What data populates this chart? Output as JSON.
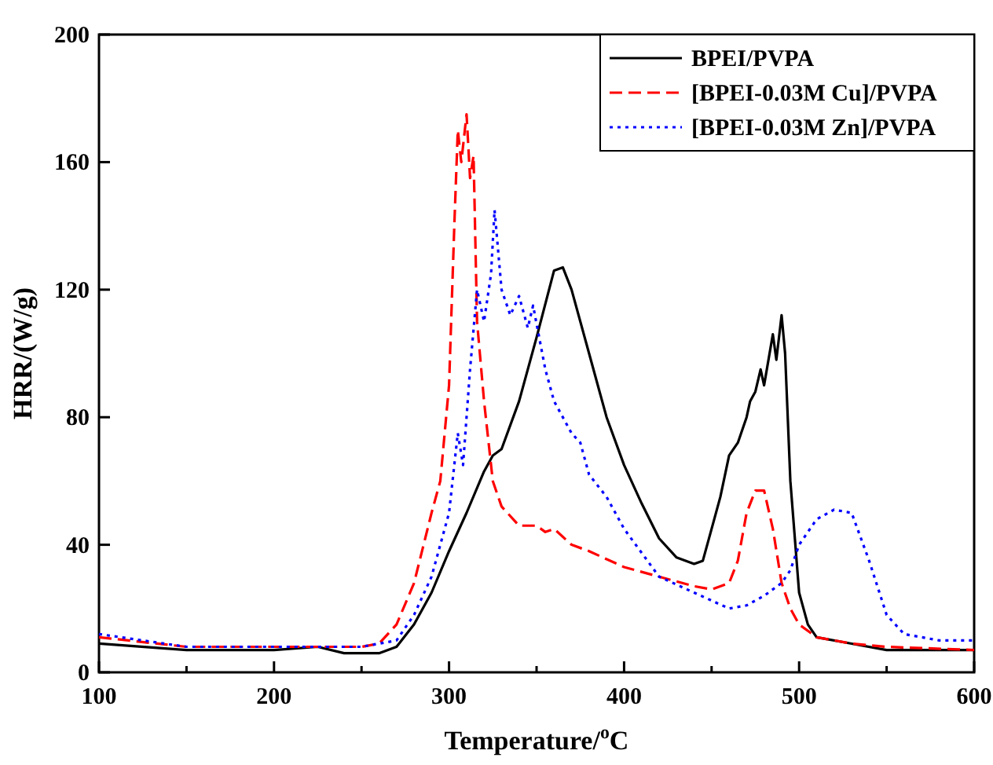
{
  "chart_data": {
    "type": "line",
    "xlabel": "Temperature/$^{o}$C",
    "ylabel": "HRR/(W/g)",
    "xlim": [
      100,
      600
    ],
    "xticks": [
      100,
      {
        "value": 150,
        "label": null
      },
      200,
      {
        "value": 250,
        "label": null
      },
      300,
      {
        "value": 350,
        "label": null
      },
      400,
      {
        "value": 450,
        "label": null
      },
      500,
      {
        "value": 550,
        "label": null
      },
      600
    ],
    "ylim": [
      0,
      200
    ],
    "yticks": [
      0,
      40,
      80,
      120,
      160,
      200
    ],
    "grid": false,
    "legend": "top right",
    "series": [
      {
        "name": "BPEI/PVPA",
        "color": "#000000",
        "line_style": "solid",
        "x": [
          100,
          150,
          200,
          225,
          240,
          260,
          270,
          280,
          290,
          300,
          310,
          320,
          325,
          330,
          340,
          350,
          360,
          365,
          370,
          380,
          390,
          400,
          410,
          420,
          430,
          440,
          445,
          450,
          455,
          460,
          465,
          470,
          472,
          475,
          478,
          480,
          485,
          487,
          490,
          492,
          495,
          500,
          505,
          510,
          530,
          550,
          570,
          600
        ],
        "values": [
          9,
          7,
          7,
          8,
          6,
          6,
          8,
          15,
          25,
          38,
          50,
          63,
          68,
          70,
          85,
          105,
          126,
          127,
          120,
          100,
          80,
          65,
          53,
          42,
          36,
          34,
          35,
          45,
          55,
          68,
          72,
          80,
          85,
          88,
          95,
          90,
          106,
          98,
          112,
          100,
          60,
          25,
          15,
          11,
          9,
          7,
          7,
          7
        ]
      },
      {
        "name": "[BPEI-0.03M Cu]/PVPA",
        "color": "#ff0000",
        "line_style": "dashed",
        "x": [
          100,
          150,
          200,
          250,
          260,
          270,
          280,
          290,
          295,
          300,
          303,
          305,
          307,
          310,
          312,
          314,
          316,
          320,
          325,
          330,
          340,
          350,
          355,
          360,
          370,
          380,
          400,
          420,
          440,
          450,
          460,
          465,
          470,
          475,
          480,
          485,
          490,
          495,
          500,
          510,
          530,
          550,
          600
        ],
        "values": [
          11,
          8,
          8,
          8,
          9,
          15,
          28,
          50,
          60,
          90,
          140,
          170,
          160,
          175,
          155,
          162,
          110,
          85,
          60,
          52,
          46,
          46,
          44,
          45,
          40,
          38,
          33,
          30,
          27,
          26,
          28,
          35,
          50,
          57,
          57,
          45,
          28,
          20,
          15,
          11,
          9,
          8,
          7
        ]
      },
      {
        "name": "[BPEI-0.03M Zn]/PVPA",
        "color": "#0000ff",
        "line_style": "dotted",
        "x": [
          100,
          150,
          200,
          250,
          270,
          280,
          290,
          300,
          305,
          308,
          312,
          316,
          320,
          324,
          326,
          330,
          335,
          340,
          345,
          348,
          355,
          360,
          370,
          375,
          380,
          390,
          400,
          420,
          440,
          460,
          470,
          480,
          490,
          495,
          500,
          510,
          520,
          530,
          540,
          550,
          560,
          580,
          600
        ],
        "values": [
          12,
          8,
          8,
          8,
          10,
          18,
          30,
          50,
          75,
          65,
          95,
          120,
          110,
          125,
          145,
          120,
          112,
          118,
          108,
          115,
          95,
          85,
          75,
          72,
          62,
          55,
          45,
          30,
          25,
          20,
          21,
          24,
          28,
          32,
          40,
          48,
          51,
          50,
          35,
          18,
          12,
          10,
          10
        ]
      }
    ]
  }
}
